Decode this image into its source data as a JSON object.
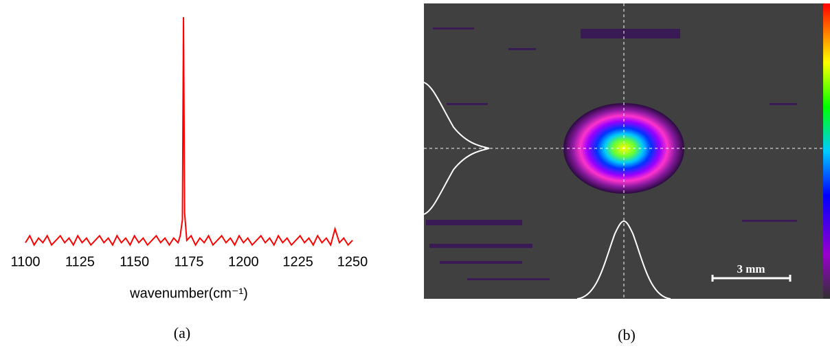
{
  "chart_data": {
    "type": "line",
    "x": [
      1100,
      1102,
      1104,
      1106,
      1108,
      1110,
      1112,
      1114,
      1116,
      1118,
      1120,
      1122,
      1124,
      1126,
      1128,
      1130,
      1132,
      1134,
      1136,
      1138,
      1140,
      1142,
      1144,
      1146,
      1148,
      1150,
      1152,
      1154,
      1156,
      1158,
      1160,
      1162,
      1164,
      1166,
      1168,
      1170,
      1171,
      1172,
      1172.5,
      1173,
      1174,
      1176,
      1178,
      1180,
      1182,
      1184,
      1186,
      1188,
      1190,
      1192,
      1194,
      1196,
      1198,
      1200,
      1202,
      1204,
      1206,
      1208,
      1210,
      1212,
      1214,
      1216,
      1218,
      1220,
      1222,
      1224,
      1226,
      1228,
      1230,
      1232,
      1234,
      1236,
      1238,
      1240,
      1242,
      1244,
      1246,
      1248,
      1250
    ],
    "values": [
      0.02,
      0.05,
      0.01,
      0.04,
      0.02,
      0.05,
      0.01,
      0.03,
      0.05,
      0.02,
      0.04,
      0.01,
      0.05,
      0.02,
      0.04,
      0.01,
      0.03,
      0.05,
      0.02,
      0.04,
      0.01,
      0.05,
      0.02,
      0.04,
      0.01,
      0.05,
      0.02,
      0.04,
      0.01,
      0.03,
      0.05,
      0.02,
      0.04,
      0.01,
      0.04,
      0.02,
      0.05,
      0.12,
      1.0,
      0.15,
      0.03,
      0.05,
      0.01,
      0.04,
      0.02,
      0.05,
      0.01,
      0.03,
      0.05,
      0.02,
      0.04,
      0.01,
      0.05,
      0.02,
      0.04,
      0.01,
      0.03,
      0.05,
      0.02,
      0.04,
      0.01,
      0.05,
      0.02,
      0.04,
      0.01,
      0.03,
      0.05,
      0.02,
      0.04,
      0.01,
      0.05,
      0.02,
      0.04,
      0.01,
      0.08,
      0.02,
      0.04,
      0.01,
      0.03
    ],
    "color": "#ff0000",
    "xlabel": "wavenumber(cm⁻¹)",
    "xlim": [
      1100,
      1250
    ],
    "xticks": [
      1100,
      1125,
      1150,
      1175,
      1200,
      1225,
      1250
    ],
    "ylim": [
      0,
      1
    ]
  },
  "figure": {
    "captions": [
      "(a)",
      "(b)"
    ],
    "scale_bar": "3 mm"
  }
}
